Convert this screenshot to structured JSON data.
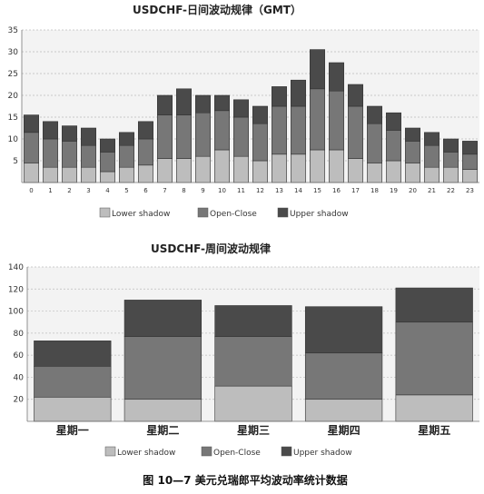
{
  "caption": "图 10—7 美元兑瑞郎平均波动率统计数据",
  "colors": {
    "lower_shadow": "#bdbdbd",
    "open_close": "#777777",
    "upper_shadow": "#4a4a4a"
  },
  "chart_data": [
    {
      "type": "bar",
      "stacked": true,
      "title": "USDCHF-日间波动规律（GMT）",
      "xlabel": "",
      "ylabel": "",
      "categories": [
        "0",
        "1",
        "2",
        "3",
        "4",
        "5",
        "6",
        "7",
        "8",
        "9",
        "10",
        "11",
        "12",
        "13",
        "14",
        "15",
        "16",
        "17",
        "18",
        "19",
        "20",
        "21",
        "22",
        "23"
      ],
      "series": [
        {
          "name": "Lower shadow",
          "values": [
            4.5,
            3.5,
            3.5,
            3.5,
            2.5,
            3.5,
            4,
            5.5,
            5.5,
            6,
            7.5,
            6,
            5,
            6.5,
            6.5,
            7.5,
            7.5,
            5.5,
            4.5,
            5,
            4.5,
            3.5,
            3.5,
            3
          ]
        },
        {
          "name": "Open-Close",
          "values": [
            7,
            6.5,
            6,
            5,
            4.5,
            5,
            6,
            10,
            10,
            10,
            9,
            9,
            8.5,
            11,
            11,
            14,
            13.5,
            12,
            9,
            7,
            5,
            5,
            3.5,
            3.5
          ]
        },
        {
          "name": "Upper shadow",
          "values": [
            4,
            4,
            3.5,
            4,
            3,
            3,
            4,
            4.5,
            6,
            4,
            3.5,
            4,
            4,
            4.5,
            6,
            9,
            6.5,
            5,
            4,
            4,
            3,
            3,
            3,
            3
          ]
        }
      ],
      "ylim": [
        0,
        35
      ],
      "yticks": [
        5,
        10,
        15,
        20,
        25,
        30,
        35
      ],
      "grid": true,
      "legend": "bottom"
    },
    {
      "type": "bar",
      "stacked": true,
      "title": "USDCHF-周间波动规律",
      "xlabel": "",
      "ylabel": "",
      "categories": [
        "星期一",
        "星期二",
        "星期三",
        "星期四",
        "星期五"
      ],
      "series": [
        {
          "name": "Lower shadow",
          "values": [
            22,
            20,
            32,
            20,
            24
          ]
        },
        {
          "name": "Open-Close",
          "values": [
            28,
            57,
            45,
            42,
            66
          ]
        },
        {
          "name": "Upper shadow",
          "values": [
            23,
            33,
            28,
            42,
            31
          ]
        }
      ],
      "ylim": [
        0,
        140
      ],
      "yticks": [
        20,
        40,
        60,
        80,
        100,
        120,
        140
      ],
      "grid": true,
      "legend": "bottom"
    }
  ]
}
